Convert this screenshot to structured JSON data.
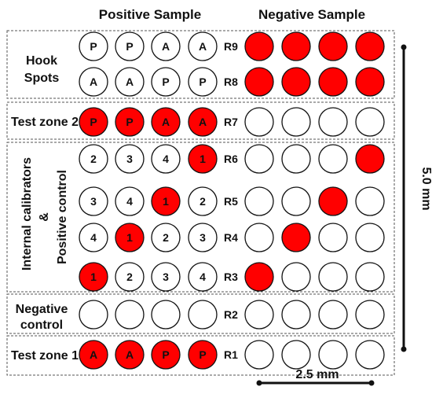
{
  "headers": {
    "positive": "Positive Sample",
    "negative": "Negative Sample"
  },
  "zones": {
    "hook_line1": "Hook",
    "hook_line2": "Spots",
    "test2": "Test zone 2",
    "internal_line1": "Internal calibrators",
    "internal_amp": "&",
    "internal_line2": "Positive control",
    "negative_line1": "Negative",
    "negative_line2": "control",
    "test1": "Test zone 1"
  },
  "rows": [
    {
      "label": "R9",
      "positive": [
        {
          "t": "P",
          "fill": false
        },
        {
          "t": "P",
          "fill": false
        },
        {
          "t": "A",
          "fill": false
        },
        {
          "t": "A",
          "fill": false
        }
      ],
      "negative": [
        true,
        true,
        true,
        true
      ]
    },
    {
      "label": "R8",
      "positive": [
        {
          "t": "A",
          "fill": false
        },
        {
          "t": "A",
          "fill": false
        },
        {
          "t": "P",
          "fill": false
        },
        {
          "t": "P",
          "fill": false
        }
      ],
      "negative": [
        true,
        true,
        true,
        true
      ]
    },
    {
      "label": "R7",
      "positive": [
        {
          "t": "P",
          "fill": true
        },
        {
          "t": "P",
          "fill": true
        },
        {
          "t": "A",
          "fill": true
        },
        {
          "t": "A",
          "fill": true
        }
      ],
      "negative": [
        false,
        false,
        false,
        false
      ]
    },
    {
      "label": "R6",
      "positive": [
        {
          "t": "2",
          "fill": false
        },
        {
          "t": "3",
          "fill": false
        },
        {
          "t": "4",
          "fill": false
        },
        {
          "t": "1",
          "fill": true
        }
      ],
      "negative": [
        false,
        false,
        false,
        true
      ]
    },
    {
      "label": "R5",
      "positive": [
        {
          "t": "3",
          "fill": false
        },
        {
          "t": "4",
          "fill": false
        },
        {
          "t": "1",
          "fill": true
        },
        {
          "t": "2",
          "fill": false
        }
      ],
      "negative": [
        false,
        false,
        true,
        false
      ]
    },
    {
      "label": "R4",
      "positive": [
        {
          "t": "4",
          "fill": false
        },
        {
          "t": "1",
          "fill": true
        },
        {
          "t": "2",
          "fill": false
        },
        {
          "t": "3",
          "fill": false
        }
      ],
      "negative": [
        false,
        true,
        false,
        false
      ]
    },
    {
      "label": "R3",
      "positive": [
        {
          "t": "1",
          "fill": true
        },
        {
          "t": "2",
          "fill": false
        },
        {
          "t": "3",
          "fill": false
        },
        {
          "t": "4",
          "fill": false
        }
      ],
      "negative": [
        true,
        false,
        false,
        false
      ]
    },
    {
      "label": "R2",
      "positive": [
        {
          "t": "",
          "fill": false
        },
        {
          "t": "",
          "fill": false
        },
        {
          "t": "",
          "fill": false
        },
        {
          "t": "",
          "fill": false
        }
      ],
      "negative": [
        false,
        false,
        false,
        false
      ]
    },
    {
      "label": "R1",
      "positive": [
        {
          "t": "A",
          "fill": true
        },
        {
          "t": "A",
          "fill": true
        },
        {
          "t": "P",
          "fill": true
        },
        {
          "t": "P",
          "fill": true
        }
      ],
      "negative": [
        false,
        false,
        false,
        false
      ]
    }
  ],
  "scale": {
    "vertical": "5.0 mm",
    "horizontal": "2.5 mm"
  },
  "colors": {
    "spot_fill": "#ff0000",
    "spot_empty": "#ffffff",
    "stroke": "#111111"
  }
}
